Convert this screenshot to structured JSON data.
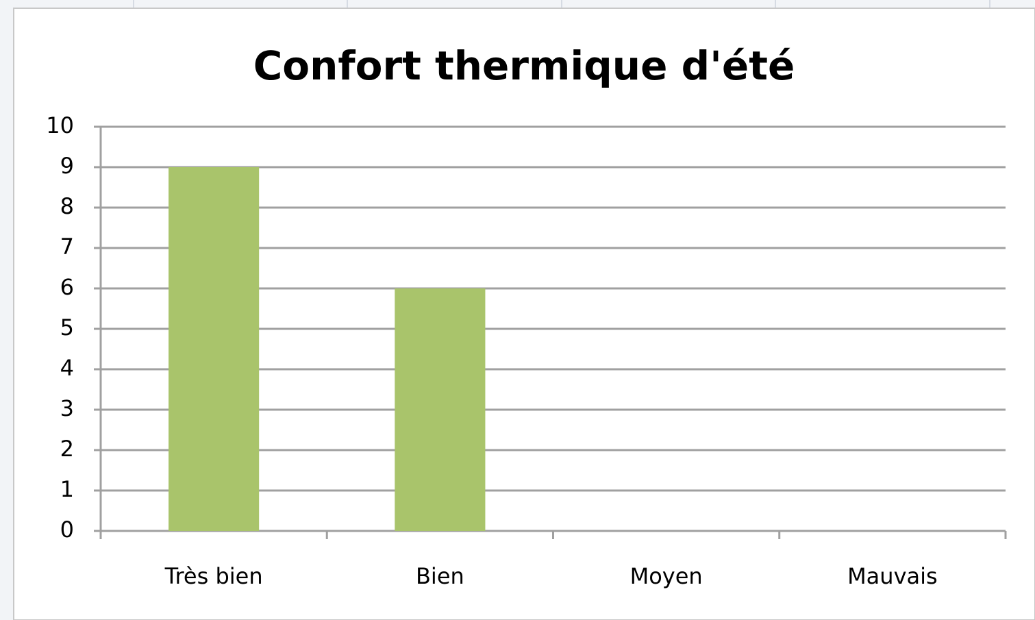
{
  "chart_data": {
    "type": "bar",
    "title": "Confort thermique d'été",
    "categories": [
      "Très bien",
      "Bien",
      "Moyen",
      "Mauvais"
    ],
    "values": [
      9,
      6,
      0,
      0
    ],
    "color": "#a9c46b",
    "ylim": [
      0,
      10
    ],
    "yticks": [
      0,
      1,
      2,
      3,
      4,
      5,
      6,
      7,
      8,
      9,
      10
    ],
    "grid": true
  }
}
